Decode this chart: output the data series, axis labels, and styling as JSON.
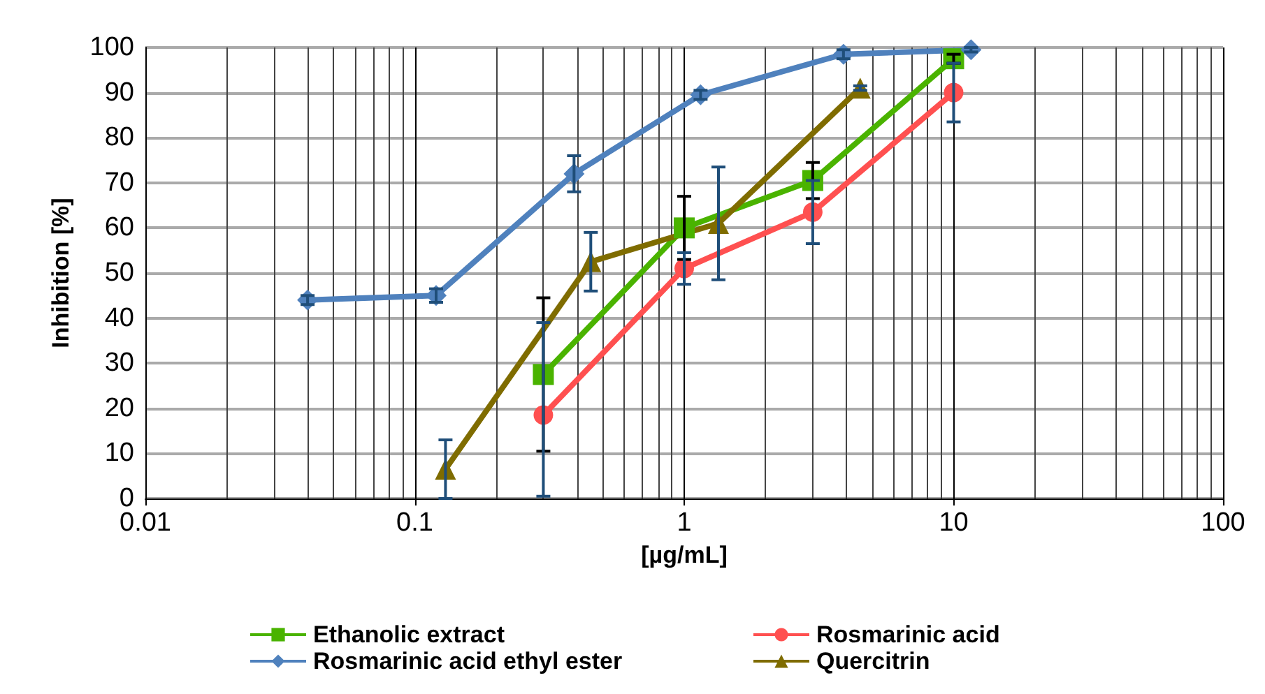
{
  "chart_data": {
    "type": "line",
    "xlabel": "[µg/mL]",
    "ylabel": "Inhibition [%]",
    "log": "x",
    "xlim": [
      0.01,
      100
    ],
    "xticks": [
      0.01,
      0.1,
      1,
      10,
      100
    ],
    "ylim": [
      0,
      100
    ],
    "yticks": [
      0,
      10,
      20,
      30,
      40,
      50,
      60,
      70,
      80,
      90,
      100
    ],
    "grid": true,
    "legend": "bottom",
    "line_style": "solid",
    "series": [
      {
        "name": "Ethanolic extract",
        "color": "#4ab300",
        "marker": "square",
        "x": [
          0.3,
          1,
          3,
          10
        ],
        "values": [
          27.5,
          60,
          70.5,
          97.5
        ],
        "errors": [
          17,
          7,
          4,
          1
        ]
      },
      {
        "name": "Rosmarinic acid",
        "color": "#ff5050",
        "marker": "circle",
        "x": [
          0.3,
          1,
          3,
          10
        ],
        "values": [
          18.5,
          51,
          63.5,
          90
        ],
        "errors": [
          [
            0.5,
            39
          ],
          3.5,
          7,
          6.5
        ]
      },
      {
        "name": "Rosmarinic acid ethyl ester",
        "color": "#4f81bd",
        "marker": "diamond",
        "x": [
          0.04,
          0.12,
          0.39,
          1.15,
          3.9,
          11.6
        ],
        "values": [
          44,
          45,
          72,
          89.5,
          98.5,
          99.5
        ],
        "errors": [
          1,
          1.5,
          4,
          1,
          1,
          0.5
        ]
      },
      {
        "name": "Quercitrin",
        "color": "#7f6c00",
        "marker": "triangle",
        "x": [
          0.13,
          0.45,
          1.34,
          4.5
        ],
        "values": [
          6.5,
          52.5,
          61,
          91
        ],
        "errors": [
          6.5,
          6.5,
          12.5,
          0.5
        ]
      }
    ]
  }
}
